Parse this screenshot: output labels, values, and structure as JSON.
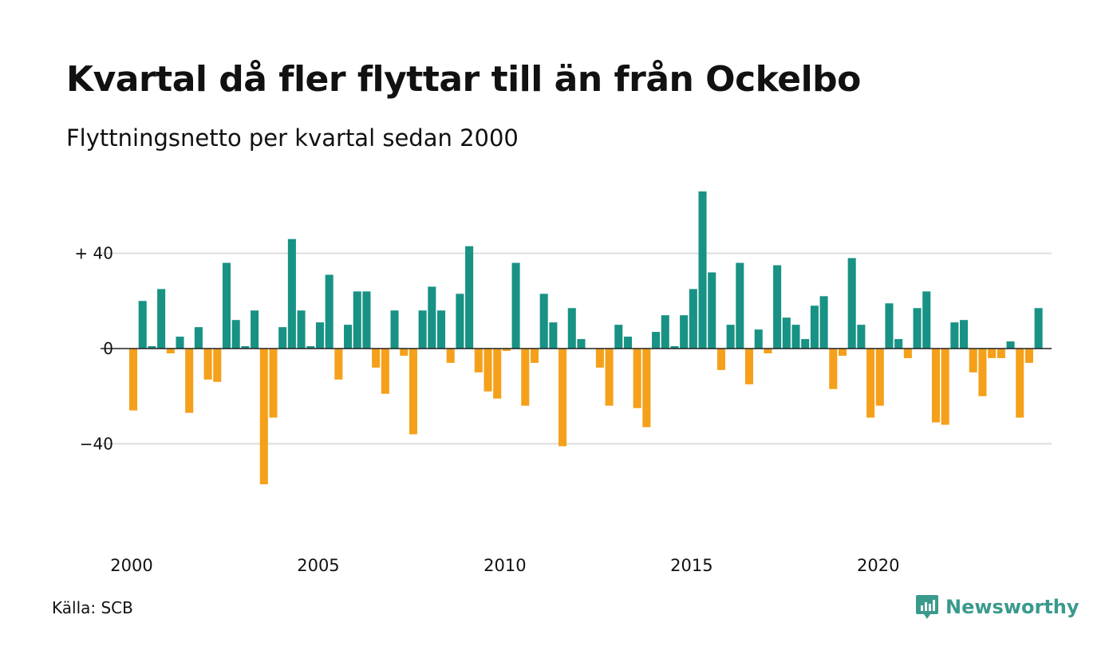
{
  "title": "Kvartal då fler flyttar till än från Ockelbo",
  "subtitle": "Flyttningsnetto per kvartal sedan 2000",
  "source": "Källa: SCB",
  "brand": "Newsworthy",
  "colors": {
    "positive": "#189284",
    "negative": "#f5a01a",
    "brand": "#3a9a8c",
    "grid": "#dddddd"
  },
  "chart_data": {
    "type": "bar",
    "title": "Kvartal då fler flyttar till än från Ockelbo",
    "subtitle": "Flyttningsnetto per kvartal sedan 2000",
    "x_start": 2000,
    "x_step": 0.25,
    "xlim": [
      1999.85,
      2024.6
    ],
    "x_ticks": [
      2000,
      2005,
      2010,
      2015,
      2020
    ],
    "x_tick_labels": [
      "2000",
      "2005",
      "2010",
      "2015",
      "2020"
    ],
    "ylim": [
      -68,
      67
    ],
    "y_ticks": [
      40,
      0,
      -40
    ],
    "y_tick_labels": [
      "+ 40",
      "0",
      "−40"
    ],
    "grid": true,
    "values": [
      -26,
      20,
      1,
      25,
      -2,
      5,
      -27,
      9,
      -13,
      -14,
      36,
      12,
      1,
      16,
      -57,
      -29,
      9,
      46,
      16,
      1,
      11,
      31,
      -13,
      10,
      24,
      24,
      -8,
      -19,
      16,
      -3,
      -36,
      16,
      26,
      16,
      -6,
      23,
      43,
      -10,
      -18,
      -21,
      -1,
      36,
      -24,
      -6,
      23,
      11,
      -41,
      17,
      4,
      0,
      -8,
      -24,
      10,
      5,
      -25,
      -33,
      7,
      14,
      1,
      14,
      25,
      66,
      32,
      -9,
      10,
      36,
      -15,
      8,
      -2,
      35,
      13,
      10,
      4,
      18,
      22,
      -17,
      -3,
      38,
      10,
      -29,
      -24,
      19,
      4,
      -4,
      17,
      24,
      -31,
      -32,
      11,
      12,
      -10,
      -20,
      -4,
      -4,
      3,
      -29,
      -6,
      17
    ]
  }
}
